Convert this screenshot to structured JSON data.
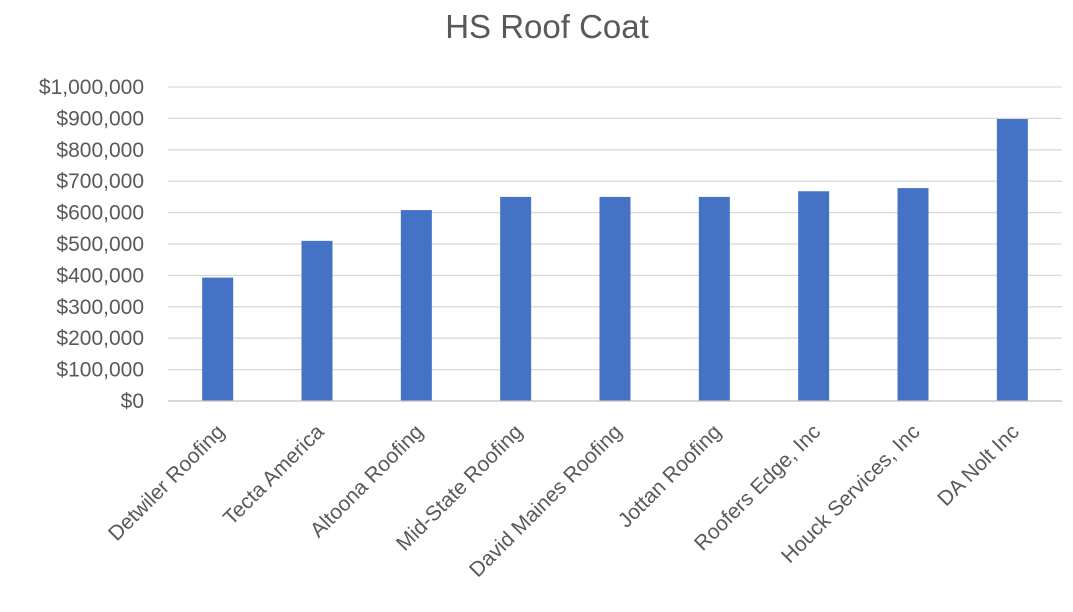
{
  "chart_data": {
    "type": "bar",
    "title": "HS Roof Coat",
    "xlabel": "",
    "ylabel": "",
    "categories": [
      "Detwiler Roofing",
      "Tecta America",
      "Altoona Roofing",
      "Mid-State Roofing",
      "David Maines Roofing",
      "Jottan Roofing",
      "Roofers Edge, Inc",
      "Houck Services, Inc",
      "DA Nolt Inc"
    ],
    "values": [
      393000,
      510000,
      608000,
      650000,
      650000,
      650000,
      668000,
      678000,
      898000
    ],
    "ylim": [
      0,
      1000000
    ],
    "yticks": [
      0,
      100000,
      200000,
      300000,
      400000,
      500000,
      600000,
      700000,
      800000,
      900000,
      1000000
    ],
    "ytick_labels": [
      "$0",
      "$100,000",
      "$200,000",
      "$300,000",
      "$400,000",
      "$500,000",
      "$600,000",
      "$700,000",
      "$800,000",
      "$900,000",
      "$1,000,000"
    ],
    "grid": true,
    "legend": "none",
    "bar_color": "#4472c4"
  }
}
